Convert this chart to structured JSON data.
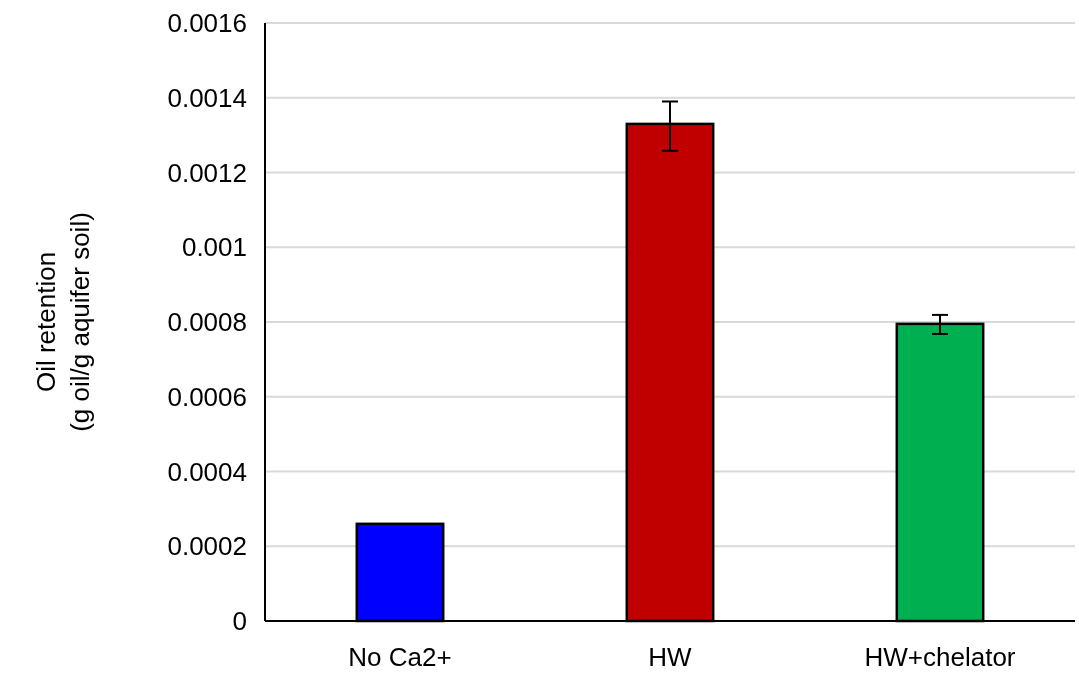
{
  "chart_data": {
    "type": "bar",
    "ylabel": "Oil retention\n(g oil/g aquifer soil)",
    "categories": [
      "No Ca2+",
      "HW",
      "HW+chelator"
    ],
    "values": [
      0.00026,
      0.00133,
      0.000795
    ],
    "colors": [
      "#0000ff",
      "#c00000",
      "#00b050"
    ],
    "errors": [
      null,
      [
        0.001258,
        0.00139
      ],
      [
        0.000768,
        0.000819
      ]
    ],
    "ylim": [
      0,
      0.0016
    ],
    "yticks": [
      {
        "value": 0,
        "label": "0"
      },
      0.0002,
      0.0004,
      0.0006,
      0.0008,
      0.001,
      0.0012,
      0.0014,
      0.0016
    ],
    "grid": "y"
  }
}
